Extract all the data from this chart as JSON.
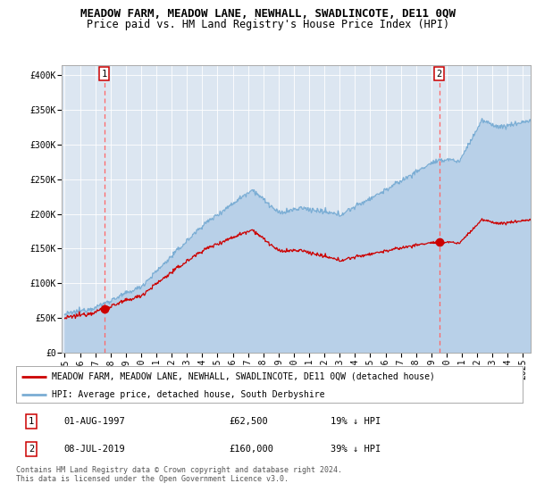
{
  "title": "MEADOW FARM, MEADOW LANE, NEWHALL, SWADLINCOTE, DE11 0QW",
  "subtitle": "Price paid vs. HM Land Registry's House Price Index (HPI)",
  "background_color": "#dce6f1",
  "plot_bg_color": "#dce6f1",
  "ylabel_ticks": [
    "£0",
    "£50K",
    "£100K",
    "£150K",
    "£200K",
    "£250K",
    "£300K",
    "£350K",
    "£400K"
  ],
  "ytick_values": [
    0,
    50000,
    100000,
    150000,
    200000,
    250000,
    300000,
    350000,
    400000
  ],
  "ylim": [
    0,
    415000
  ],
  "xlim_start": 1994.8,
  "xlim_end": 2025.5,
  "xtick_years": [
    1995,
    1996,
    1997,
    1998,
    1999,
    2000,
    2001,
    2002,
    2003,
    2004,
    2005,
    2006,
    2007,
    2008,
    2009,
    2010,
    2011,
    2012,
    2013,
    2014,
    2015,
    2016,
    2017,
    2018,
    2019,
    2020,
    2021,
    2022,
    2023,
    2024,
    2025
  ],
  "sale1_date": 1997.58,
  "sale1_price": 62500,
  "sale1_label": "1",
  "sale2_date": 2019.52,
  "sale2_price": 160000,
  "sale2_label": "2",
  "red_line_color": "#cc0000",
  "blue_line_color": "#7aadd4",
  "blue_fill_color": "#b8d0e8",
  "dot_color": "#cc0000",
  "vline_color": "#ff6666",
  "legend_text1": "MEADOW FARM, MEADOW LANE, NEWHALL, SWADLINCOTE, DE11 0QW (detached house)",
  "legend_text2": "HPI: Average price, detached house, South Derbyshire",
  "table_row1": [
    "1",
    "01-AUG-1997",
    "£62,500",
    "19% ↓ HPI"
  ],
  "table_row2": [
    "2",
    "08-JUL-2019",
    "£160,000",
    "39% ↓ HPI"
  ],
  "footer": "Contains HM Land Registry data © Crown copyright and database right 2024.\nThis data is licensed under the Open Government Licence v3.0.",
  "title_fontsize": 9,
  "subtitle_fontsize": 8.5,
  "tick_fontsize": 7
}
